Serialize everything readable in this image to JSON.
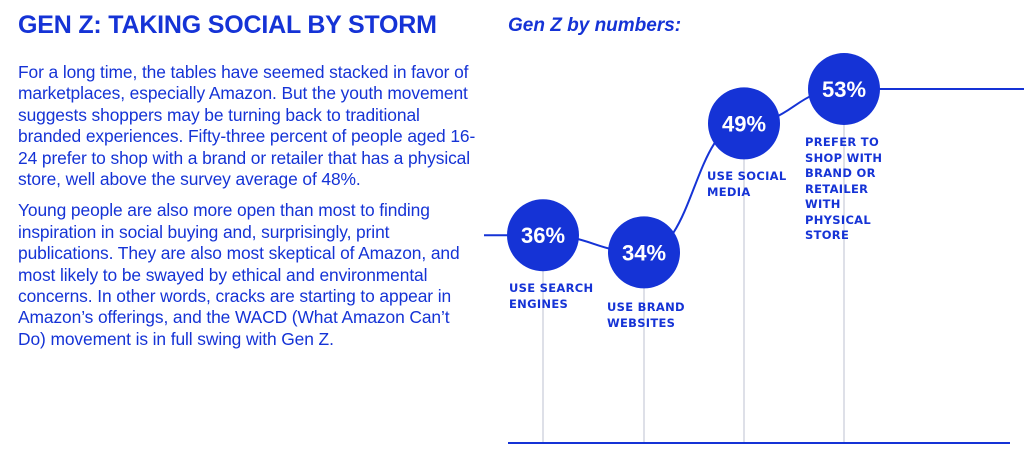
{
  "article": {
    "headline": "GEN Z: TAKING SOCIAL BY STORM",
    "paragraphs": [
      "For a long time, the tables have seemed stacked in favor of marketplaces, especially Amazon. But the youth movement suggests shoppers may be turning back to traditional branded experiences. Fifty-three percent of people aged 16-24 prefer to shop with a brand or retailer that has a physical store, well above the survey average of 48%.",
      "Young people are also more open than most to finding inspiration in social buying and, surprisingly, print publications. They are also most skeptical of Amazon, and most likely to be swayed by ethical and environmental concerns. In other words, cracks are starting to appear in Amazon’s offerings, and the WACD (What Amazon Can’t Do) movement is in full swing with Gen Z."
    ]
  },
  "chart_data": {
    "type": "line",
    "title": "Gen Z by numbers:",
    "unit": "%",
    "categories": [
      "USE SEARCH ENGINES",
      "USE BRAND WEBSITES",
      "USE SOCIAL MEDIA",
      "PREFER TO SHOP WITH BRAND OR RETAILER WITH PHYSICAL STORE"
    ],
    "values": [
      36,
      34,
      49,
      53
    ],
    "value_labels": [
      "36%",
      "34%",
      "49%",
      "53%"
    ],
    "label_lines": [
      [
        "USE SEARCH",
        "ENGINES"
      ],
      [
        "USE BRAND",
        "WEBSITES"
      ],
      [
        "USE SOCIAL",
        "MEDIA"
      ],
      [
        "PREFER TO",
        "SHOP WITH",
        "BRAND OR",
        "RETAILER",
        "WITH",
        "PHYSICAL",
        "STORE"
      ]
    ],
    "ylim": [
      30,
      57
    ],
    "grid": false,
    "legend": "none"
  },
  "colors": {
    "accent": "#1533d6",
    "stem": "#c8ccd8",
    "text_on_accent": "#ffffff"
  }
}
